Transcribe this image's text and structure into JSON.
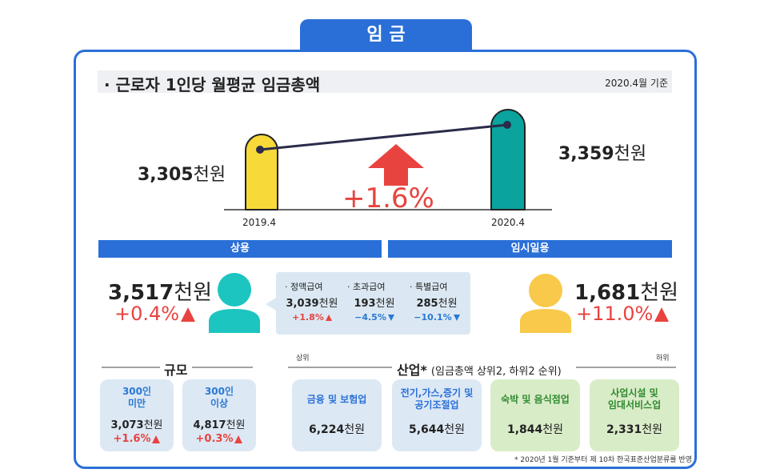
{
  "header": {
    "tab": "임 금",
    "title": "근로자 1인당 월평균 임금총액",
    "basis": "2020.4월 기준"
  },
  "comparison": {
    "before": {
      "amount": "3,305",
      "unit": "천원",
      "date": "2019.4"
    },
    "after": {
      "amount": "3,359",
      "unit": "천원",
      "date": "2020.4"
    },
    "change": "+1.6%"
  },
  "employment": [
    {
      "label": "상용",
      "amount": "3,517",
      "unit": "천원",
      "change": "+0.4%",
      "breakdown": [
        {
          "label": "정액급여",
          "amount": "3,039",
          "unit": "천원",
          "change": "+1.8%"
        },
        {
          "label": "초과급여",
          "amount": "193",
          "unit": "천원",
          "change": "−4.5%"
        },
        {
          "label": "특별급여",
          "amount": "285",
          "unit": "천원",
          "change": "−10.1%"
        }
      ]
    },
    {
      "label": "임시일용",
      "amount": "1,681",
      "unit": "천원",
      "change": "+11.0%"
    }
  ],
  "size": {
    "title": "규모",
    "items": [
      {
        "label": "300인\n미만",
        "amount": "3,073",
        "unit": "천원",
        "change": "+1.6%"
      },
      {
        "label": "300인\n이상",
        "amount": "4,817",
        "unit": "천원",
        "change": "+0.3%"
      }
    ]
  },
  "industry": {
    "title": "산업*",
    "subtitle": "(임금총액 상위2, 하위2 순위)",
    "top_label": "상위",
    "bottom_label": "하위",
    "items": [
      {
        "label": "금융 및 보험업",
        "amount": "6,224",
        "unit": "천원"
      },
      {
        "label": "전기,가스,증기 및\n공기조절업",
        "amount": "5,644",
        "unit": "천원"
      },
      {
        "label": "숙박 및 음식점업",
        "amount": "1,844",
        "unit": "천원"
      },
      {
        "label": "사업시설 및\n임대서비스업",
        "amount": "2,331",
        "unit": "천원"
      }
    ]
  },
  "footnote": "* 2020년 1월 기준부터 제 10차 한국표준산업분류를 반영"
}
